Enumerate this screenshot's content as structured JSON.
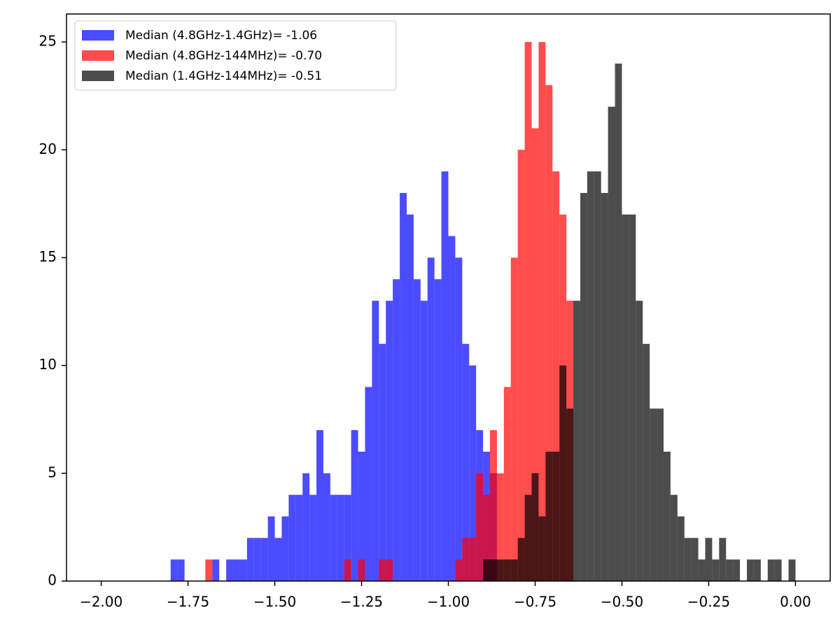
{
  "chart_data": {
    "type": "histogram",
    "alpha": 0.7,
    "legend": "upper left",
    "xlim": [
      -2.1,
      0.1
    ],
    "ylim": [
      0,
      26.3
    ],
    "xticks": [
      {
        "value": -2,
        "label": "−2.00"
      },
      {
        "value": -1.75,
        "label": "−1.75"
      },
      {
        "value": -1.5,
        "label": "−1.50"
      },
      {
        "value": -1.25,
        "label": "−1.25"
      },
      {
        "value": -1,
        "label": "−1.00"
      },
      {
        "value": -0.75,
        "label": "−0.75"
      },
      {
        "value": -0.5,
        "label": "−0.50"
      },
      {
        "value": -0.25,
        "label": "−0.25"
      },
      {
        "value": 0,
        "label": "0.00"
      }
    ],
    "yticks": [
      0,
      5,
      10,
      15,
      20,
      25
    ],
    "series": [
      {
        "name": "Median (4.8GHz-1.4GHz)= -1.06",
        "color": "#0000ff",
        "bins": [
          -1.8,
          -1.78,
          -1.76,
          -1.74,
          -1.72,
          -1.7,
          -1.68,
          -1.66,
          -1.64,
          -1.62,
          -1.6,
          -1.58,
          -1.56,
          -1.54,
          -1.52,
          -1.5,
          -1.48,
          -1.46,
          -1.44,
          -1.42,
          -1.4,
          -1.38,
          -1.36,
          -1.34,
          -1.32,
          -1.3,
          -1.28,
          -1.26,
          -1.24,
          -1.22,
          -1.2,
          -1.18,
          -1.16,
          -1.14,
          -1.12,
          -1.1,
          -1.08,
          -1.06,
          -1.04,
          -1.02,
          -1,
          -0.98,
          -0.96,
          -0.94,
          -0.92,
          -0.9,
          -0.88,
          -0.86
        ],
        "values": [
          1,
          1,
          0,
          0,
          0,
          0,
          1,
          0,
          1,
          1,
          1,
          2,
          2,
          2,
          3,
          2,
          3,
          4,
          4,
          5,
          4,
          7,
          5,
          4,
          4,
          4,
          7,
          6,
          9,
          13,
          11,
          13,
          14,
          18,
          17,
          14,
          13,
          15,
          14,
          19,
          16,
          15,
          11,
          10,
          7,
          6,
          5
        ]
      },
      {
        "name": "Median (4.8GHz-144MHz)= -0.70",
        "color": "#ff0000",
        "bins": [
          -1.7,
          -1.68,
          -1.66,
          -1.64,
          -1.62,
          -1.6,
          -1.58,
          -1.56,
          -1.54,
          -1.52,
          -1.5,
          -1.48,
          -1.46,
          -1.44,
          -1.42,
          -1.4,
          -1.38,
          -1.36,
          -1.34,
          -1.32,
          -1.3,
          -1.28,
          -1.26,
          -1.24,
          -1.22,
          -1.2,
          -1.18,
          -1.16,
          -1.14,
          -1.12,
          -1.1,
          -1.08,
          -1.06,
          -1.04,
          -1.02,
          -1,
          -0.98,
          -0.96,
          -0.94,
          -0.92,
          -0.9,
          -0.88,
          -0.86,
          -0.84,
          -0.82,
          -0.8,
          -0.78,
          -0.76,
          -0.74,
          -0.72,
          -0.7,
          -0.68,
          -0.66,
          -0.64
        ],
        "values": [
          1,
          0,
          0,
          0,
          0,
          0,
          0,
          0,
          0,
          0,
          0,
          0,
          0,
          0,
          0,
          0,
          0,
          0,
          0,
          0,
          1,
          0,
          1,
          0,
          0,
          1,
          1,
          0,
          0,
          0,
          0,
          0,
          0,
          0,
          0,
          0,
          1,
          2,
          2,
          5,
          4,
          7,
          5,
          9,
          15,
          20,
          25,
          21,
          25,
          23,
          19,
          17,
          13
        ]
      },
      {
        "name": "Median (1.4GHz-144MHz)= -0.51",
        "color": "#000000",
        "bins": [
          -0.9,
          -0.88,
          -0.86,
          -0.84,
          -0.82,
          -0.8,
          -0.78,
          -0.76,
          -0.74,
          -0.72,
          -0.7,
          -0.68,
          -0.66,
          -0.64,
          -0.62,
          -0.6,
          -0.58,
          -0.56,
          -0.54,
          -0.52,
          -0.5,
          -0.48,
          -0.46,
          -0.44,
          -0.42,
          -0.4,
          -0.38,
          -0.36,
          -0.34,
          -0.32,
          -0.3,
          -0.28,
          -0.26,
          -0.24,
          -0.22,
          -0.2,
          -0.18,
          -0.16,
          -0.14,
          -0.12,
          -0.1,
          -0.08,
          -0.06,
          -0.04,
          -0.02,
          0
        ],
        "values": [
          1,
          1,
          1,
          1,
          1,
          2,
          4,
          5,
          3,
          6,
          6,
          10,
          8,
          13,
          18,
          19,
          19,
          18,
          22,
          24,
          17,
          17,
          13,
          11,
          8,
          8,
          6,
          4,
          3,
          2,
          2,
          1,
          2,
          1,
          2,
          1,
          1,
          0,
          1,
          1,
          0,
          1,
          1,
          0,
          1
        ]
      }
    ]
  }
}
